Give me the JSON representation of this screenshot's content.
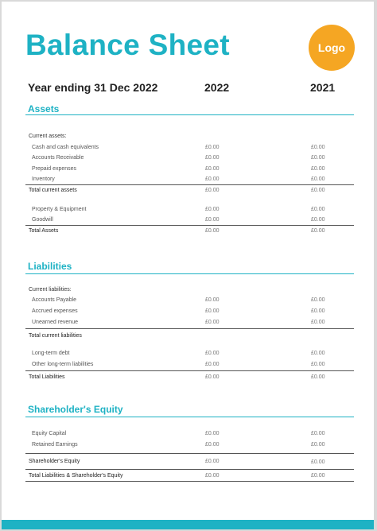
{
  "title": "Balance Sheet",
  "logo_label": "Logo",
  "header": {
    "period": "Year ending 31 Dec 2022",
    "col_a": "2022",
    "col_b": "2021"
  },
  "assets": {
    "title": "Assets",
    "current_heading": "Current assets:",
    "items": [
      {
        "label": "Cash and cash equivalents",
        "v2022": "£0.00",
        "v2021": "£0.00"
      },
      {
        "label": "Accounts Receivable",
        "v2022": "£0.00",
        "v2021": "£0.00"
      },
      {
        "label": "Prepaid expenses",
        "v2022": "£0.00",
        "v2021": "£0.00"
      },
      {
        "label": "Inventory",
        "v2022": "£0.00",
        "v2021": "£0.00"
      }
    ],
    "total_current": {
      "label": "Total current assets",
      "v2022": "£0.00",
      "v2021": "£0.00"
    },
    "fixed": [
      {
        "label": "Property & Equipment",
        "v2022": "£0.00",
        "v2021": "£0.00"
      },
      {
        "label": "Goodwill",
        "v2022": "£0.00",
        "v2021": "£0.00"
      }
    ],
    "total": {
      "label": "Total Assets",
      "v2022": "£0.00",
      "v2021": "£0.00"
    }
  },
  "liabilities": {
    "title": "Liabilities",
    "current_heading": "Current liabilities:",
    "items": [
      {
        "label": "Accounts Payable",
        "v2022": "£0.00",
        "v2021": "£0.00"
      },
      {
        "label": "Accrued expenses",
        "v2022": "£0.00",
        "v2021": "£0.00"
      },
      {
        "label": "Unearned revenue",
        "v2022": "£0.00",
        "v2021": "£0.00"
      }
    ],
    "total_current": {
      "label": "Total current liabilities"
    },
    "long_term": [
      {
        "label": "Long-term debt",
        "v2022": "£0.00",
        "v2021": "£0.00"
      },
      {
        "label": "Other long-term liabilities",
        "v2022": "£0.00",
        "v2021": "£0.00"
      }
    ],
    "total": {
      "label": "Total Liabilities",
      "v2022": "£0.00",
      "v2021": "£0.00"
    }
  },
  "equity": {
    "title": "Shareholder's Equity",
    "items": [
      {
        "label": "Equity Capital",
        "v2022": "£0.00",
        "v2021": "£0.00"
      },
      {
        "label": "Retained Earnings",
        "v2022": "£0.00",
        "v2021": "£0.00"
      }
    ],
    "total": {
      "label": "Shareholder's Equity",
      "v2022": "£0.00",
      "v2021": "£0.00"
    },
    "grand_total": {
      "label": "Total Liabilities & Shareholder's Equity",
      "v2022": "£0.00",
      "v2021": "£0.00"
    }
  }
}
